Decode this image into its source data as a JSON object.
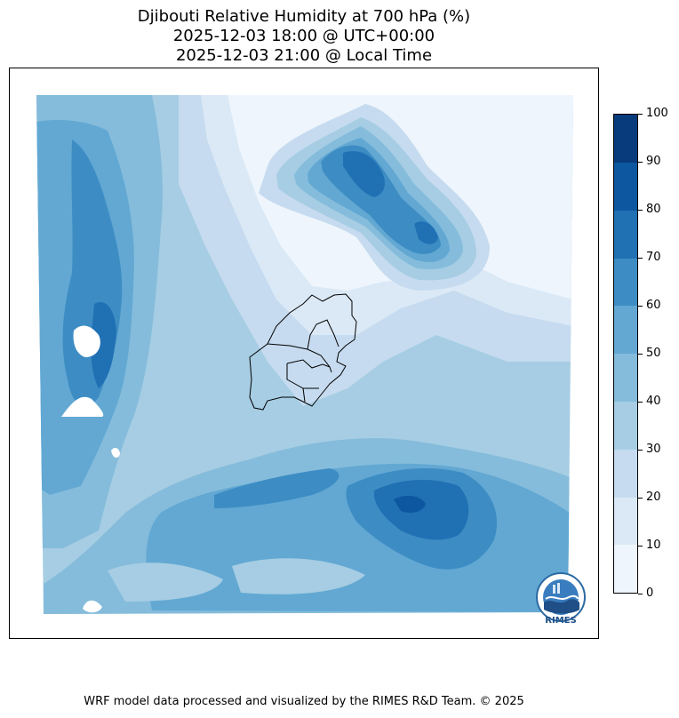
{
  "title": {
    "line1": "Djibouti Relative Humidity at 700 hPa (%)",
    "line2": "2025-12-03 18:00 @ UTC+00:00",
    "line3": "2025-12-03 21:00 @ Local Time"
  },
  "colorbar": {
    "levels": [
      0,
      10,
      20,
      30,
      40,
      50,
      60,
      70,
      80,
      90,
      100
    ],
    "labels": [
      "0",
      "10",
      "20",
      "30",
      "40",
      "50",
      "60",
      "70",
      "80",
      "90",
      "100"
    ],
    "colors": [
      "#f7fbff",
      "#deebf7",
      "#c6dbef",
      "#9ecae1",
      "#6baed6",
      "#4292c6",
      "#2171b5",
      "#08519c",
      "#08306b",
      "#08306b"
    ],
    "fills": [
      "#eef5fc",
      "#dbe9f6",
      "#c6dbef",
      "#a6cde3",
      "#85bcdb",
      "#62a8d3",
      "#3d8dc4",
      "#2070b4",
      "#0d56a0",
      "#083b7c"
    ]
  },
  "logo": {
    "text": "RIMES",
    "icon": "rimes-logo-icon"
  },
  "footer": "WRF model data processed and visualized by the RIMES R&D Team. © 2025"
}
